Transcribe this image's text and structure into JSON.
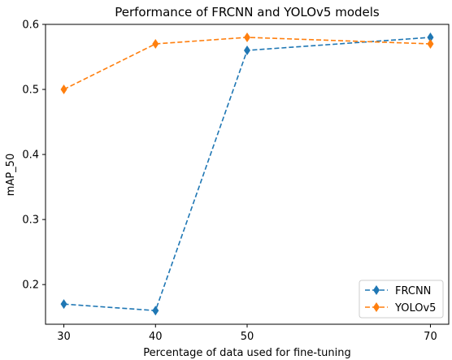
{
  "chart_data": {
    "type": "line",
    "title": "Performance of FRCNN and YOLOv5 models",
    "xlabel": "Percentage of data used for fine-tuning",
    "ylabel": "mAP_50",
    "x": [
      30,
      40,
      50,
      70
    ],
    "xticks": [
      30,
      40,
      50,
      70
    ],
    "yticks": [
      0.2,
      0.3,
      0.4,
      0.5,
      0.6
    ],
    "xlim": [
      28,
      72
    ],
    "ylim": [
      0.139,
      0.6
    ],
    "grid": false,
    "legend_position": "lower right",
    "series": [
      {
        "name": "FRCNN",
        "color": "#1f77b4",
        "marker": "diamond",
        "line_style": "dashed",
        "values": [
          0.17,
          0.16,
          0.56,
          0.58
        ]
      },
      {
        "name": "YOLOv5",
        "color": "#ff7f0e",
        "marker": "diamond",
        "line_style": "dashed",
        "values": [
          0.5,
          0.57,
          0.58,
          0.57
        ]
      }
    ]
  }
}
